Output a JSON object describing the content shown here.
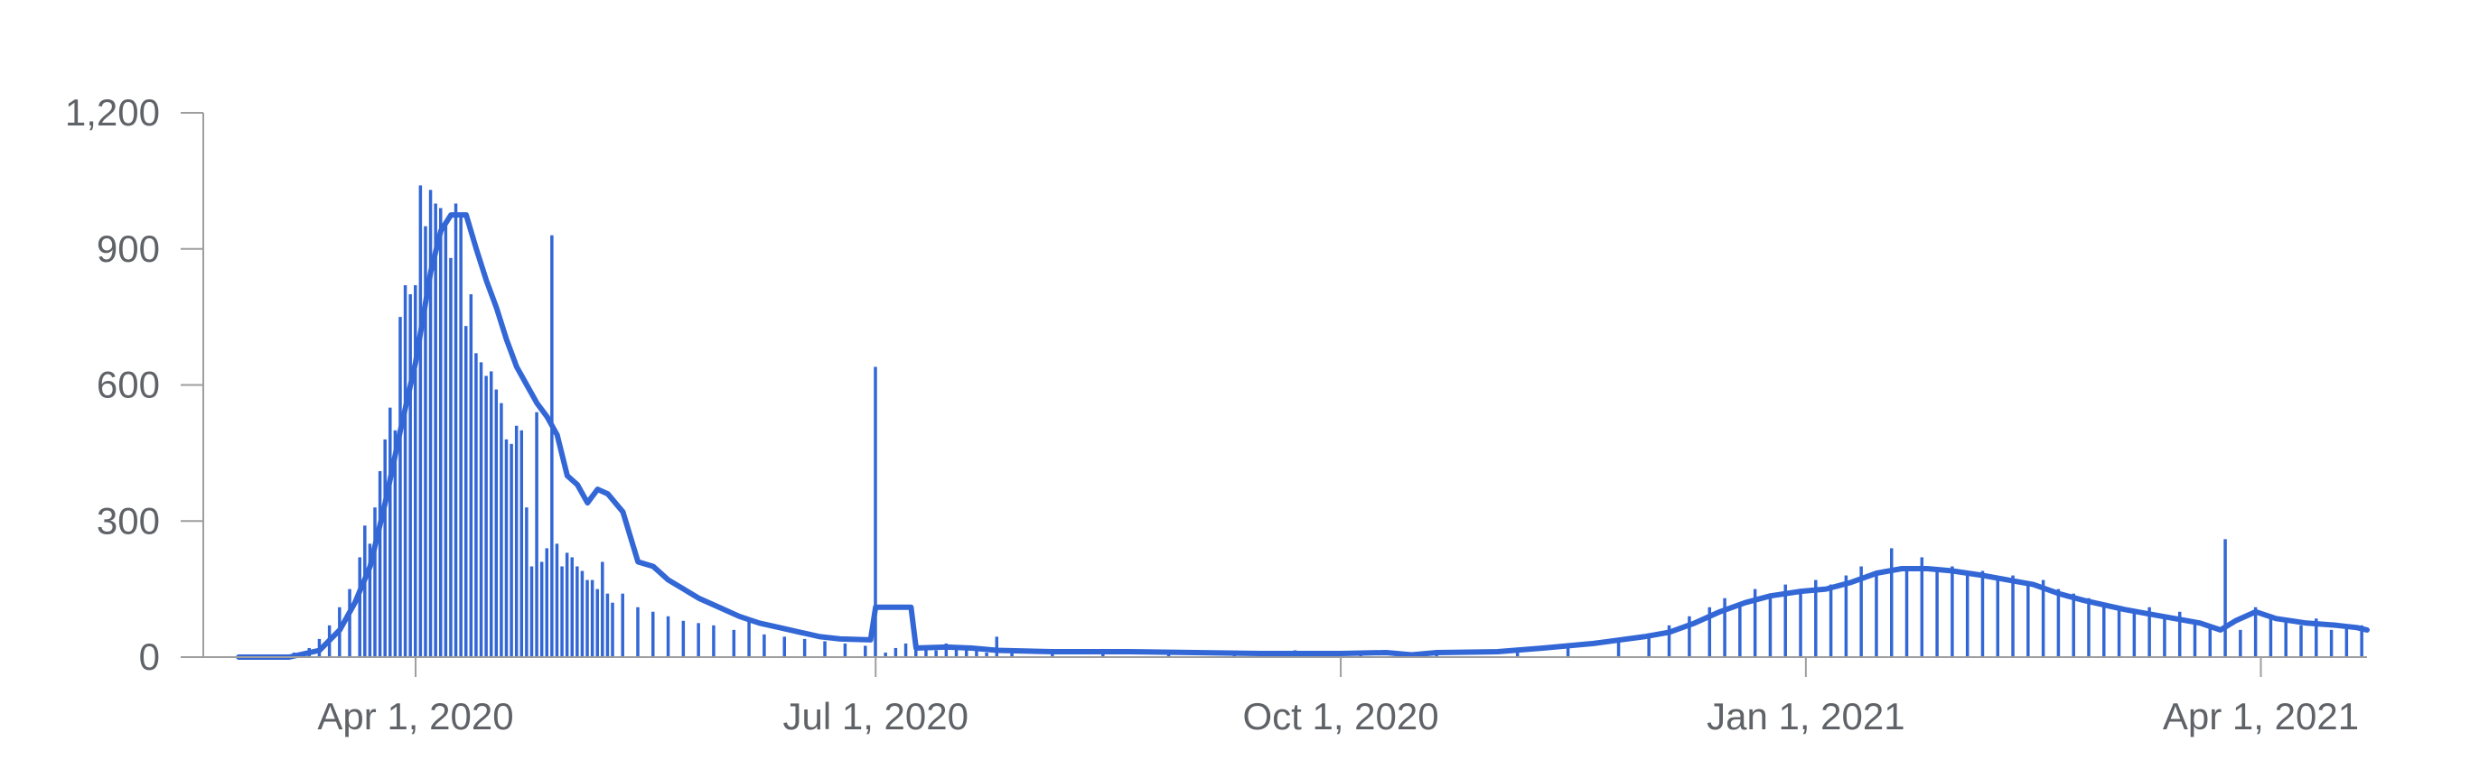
{
  "chart_data": {
    "type": "bar",
    "title": "",
    "xlabel": "",
    "ylabel": "",
    "ylim": [
      0,
      1200
    ],
    "yticks": [
      0,
      300,
      600,
      900,
      1200
    ],
    "ytick_labels": [
      "0",
      "300",
      "600",
      "900",
      "1,200"
    ],
    "xticks": [
      {
        "date": "2020-04-01",
        "label": "Apr 1, 2020"
      },
      {
        "date": "2020-07-01",
        "label": "Jul 1, 2020"
      },
      {
        "date": "2020-10-01",
        "label": "Oct 1, 2020"
      },
      {
        "date": "2021-01-01",
        "label": "Jan 1, 2021"
      },
      {
        "date": "2021-04-01",
        "label": "Apr 1, 2021"
      }
    ],
    "x_range": [
      "2020-02-19",
      "2021-04-22"
    ],
    "grid": false,
    "legend": "none",
    "colors": {
      "bars": "#3367d6",
      "line": "#3367d6",
      "axis": "#9e9e9e",
      "text": "#5f6368"
    },
    "series": [
      {
        "type": "bar",
        "points": [
          [
            "2020-02-26",
            0
          ],
          [
            "2020-03-05",
            3
          ],
          [
            "2020-03-08",
            10
          ],
          [
            "2020-03-11",
            20
          ],
          [
            "2020-03-13",
            40
          ],
          [
            "2020-03-15",
            70
          ],
          [
            "2020-03-17",
            110
          ],
          [
            "2020-03-19",
            150
          ],
          [
            "2020-03-21",
            220
          ],
          [
            "2020-03-22",
            290
          ],
          [
            "2020-03-23",
            250
          ],
          [
            "2020-03-24",
            330
          ],
          [
            "2020-03-25",
            410
          ],
          [
            "2020-03-26",
            480
          ],
          [
            "2020-03-27",
            550
          ],
          [
            "2020-03-28",
            500
          ],
          [
            "2020-03-29",
            750
          ],
          [
            "2020-03-30",
            820
          ],
          [
            "2020-03-31",
            800
          ],
          [
            "2020-04-01",
            820
          ],
          [
            "2020-04-02",
            1040
          ],
          [
            "2020-04-03",
            950
          ],
          [
            "2020-04-04",
            1030
          ],
          [
            "2020-04-05",
            1000
          ],
          [
            "2020-04-06",
            990
          ],
          [
            "2020-04-07",
            960
          ],
          [
            "2020-04-08",
            880
          ],
          [
            "2020-04-09",
            1000
          ],
          [
            "2020-04-10",
            980
          ],
          [
            "2020-04-11",
            730
          ],
          [
            "2020-04-12",
            800
          ],
          [
            "2020-04-13",
            670
          ],
          [
            "2020-04-14",
            650
          ],
          [
            "2020-04-15",
            620
          ],
          [
            "2020-04-16",
            630
          ],
          [
            "2020-04-17",
            590
          ],
          [
            "2020-04-18",
            560
          ],
          [
            "2020-04-19",
            480
          ],
          [
            "2020-04-20",
            470
          ],
          [
            "2020-04-21",
            510
          ],
          [
            "2020-04-22",
            500
          ],
          [
            "2020-04-23",
            330
          ],
          [
            "2020-04-24",
            200
          ],
          [
            "2020-04-25",
            540
          ],
          [
            "2020-04-26",
            210
          ],
          [
            "2020-04-27",
            240
          ],
          [
            "2020-04-28",
            930
          ],
          [
            "2020-04-29",
            250
          ],
          [
            "2020-04-30",
            200
          ],
          [
            "2020-05-01",
            230
          ],
          [
            "2020-05-02",
            220
          ],
          [
            "2020-05-03",
            200
          ],
          [
            "2020-05-04",
            190
          ],
          [
            "2020-05-05",
            170
          ],
          [
            "2020-05-06",
            170
          ],
          [
            "2020-05-07",
            150
          ],
          [
            "2020-05-08",
            210
          ],
          [
            "2020-05-09",
            140
          ],
          [
            "2020-05-10",
            120
          ],
          [
            "2020-05-12",
            140
          ],
          [
            "2020-05-15",
            110
          ],
          [
            "2020-05-18",
            100
          ],
          [
            "2020-05-21",
            90
          ],
          [
            "2020-05-24",
            80
          ],
          [
            "2020-05-27",
            75
          ],
          [
            "2020-05-30",
            70
          ],
          [
            "2020-06-03",
            60
          ],
          [
            "2020-06-06",
            80
          ],
          [
            "2020-06-09",
            50
          ],
          [
            "2020-06-13",
            45
          ],
          [
            "2020-06-17",
            40
          ],
          [
            "2020-06-21",
            35
          ],
          [
            "2020-06-25",
            30
          ],
          [
            "2020-06-29",
            25
          ],
          [
            "2020-07-01",
            640
          ],
          [
            "2020-07-03",
            10
          ],
          [
            "2020-07-05",
            20
          ],
          [
            "2020-07-07",
            30
          ],
          [
            "2020-07-09",
            20
          ],
          [
            "2020-07-11",
            25
          ],
          [
            "2020-07-13",
            15
          ],
          [
            "2020-07-15",
            30
          ],
          [
            "2020-07-17",
            20
          ],
          [
            "2020-07-19",
            15
          ],
          [
            "2020-07-21",
            20
          ],
          [
            "2020-07-23",
            10
          ],
          [
            "2020-07-25",
            45
          ],
          [
            "2020-07-28",
            10
          ],
          [
            "2020-08-05",
            10
          ],
          [
            "2020-08-15",
            8
          ],
          [
            "2020-08-28",
            15
          ],
          [
            "2020-09-10",
            6
          ],
          [
            "2020-09-22",
            15
          ],
          [
            "2020-10-05",
            8
          ],
          [
            "2020-10-20",
            10
          ],
          [
            "2020-11-05",
            20
          ],
          [
            "2020-11-15",
            25
          ],
          [
            "2020-11-25",
            40
          ],
          [
            "2020-12-01",
            50
          ],
          [
            "2020-12-05",
            70
          ],
          [
            "2020-12-09",
            90
          ],
          [
            "2020-12-13",
            110
          ],
          [
            "2020-12-16",
            130
          ],
          [
            "2020-12-19",
            120
          ],
          [
            "2020-12-22",
            150
          ],
          [
            "2020-12-25",
            140
          ],
          [
            "2020-12-28",
            160
          ],
          [
            "2020-12-31",
            140
          ],
          [
            "2021-01-03",
            170
          ],
          [
            "2021-01-06",
            160
          ],
          [
            "2021-01-09",
            180
          ],
          [
            "2021-01-12",
            200
          ],
          [
            "2021-01-15",
            190
          ],
          [
            "2021-01-18",
            240
          ],
          [
            "2021-01-21",
            200
          ],
          [
            "2021-01-24",
            220
          ],
          [
            "2021-01-27",
            190
          ],
          [
            "2021-01-30",
            200
          ],
          [
            "2021-02-02",
            180
          ],
          [
            "2021-02-05",
            190
          ],
          [
            "2021-02-08",
            170
          ],
          [
            "2021-02-11",
            180
          ],
          [
            "2021-02-14",
            160
          ],
          [
            "2021-02-17",
            170
          ],
          [
            "2021-02-20",
            150
          ],
          [
            "2021-02-23",
            140
          ],
          [
            "2021-02-26",
            130
          ],
          [
            "2021-03-01",
            120
          ],
          [
            "2021-03-04",
            110
          ],
          [
            "2021-03-07",
            100
          ],
          [
            "2021-03-10",
            110
          ],
          [
            "2021-03-13",
            90
          ],
          [
            "2021-03-16",
            100
          ],
          [
            "2021-03-19",
            80
          ],
          [
            "2021-03-22",
            70
          ],
          [
            "2021-03-25",
            260
          ],
          [
            "2021-03-28",
            60
          ],
          [
            "2021-03-31",
            110
          ],
          [
            "2021-04-03",
            90
          ],
          [
            "2021-04-06",
            80
          ],
          [
            "2021-04-09",
            70
          ],
          [
            "2021-04-12",
            85
          ],
          [
            "2021-04-15",
            60
          ],
          [
            "2021-04-18",
            70
          ],
          [
            "2021-04-21",
            70
          ]
        ]
      },
      {
        "type": "line",
        "points": [
          [
            "2020-02-26",
            0
          ],
          [
            "2020-03-07",
            0
          ],
          [
            "2020-03-09",
            5
          ],
          [
            "2020-03-13",
            15
          ],
          [
            "2020-03-17",
            60
          ],
          [
            "2020-03-20",
            120
          ],
          [
            "2020-03-23",
            200
          ],
          [
            "2020-03-26",
            340
          ],
          [
            "2020-03-29",
            500
          ],
          [
            "2020-04-01",
            650
          ],
          [
            "2020-04-04",
            850
          ],
          [
            "2020-04-06",
            940
          ],
          [
            "2020-04-08",
            975
          ],
          [
            "2020-04-11",
            975
          ],
          [
            "2020-04-13",
            900
          ],
          [
            "2020-04-15",
            830
          ],
          [
            "2020-04-17",
            770
          ],
          [
            "2020-04-19",
            700
          ],
          [
            "2020-04-21",
            640
          ],
          [
            "2020-04-23",
            600
          ],
          [
            "2020-04-25",
            560
          ],
          [
            "2020-04-27",
            530
          ],
          [
            "2020-04-29",
            490
          ],
          [
            "2020-05-01",
            400
          ],
          [
            "2020-05-03",
            380
          ],
          [
            "2020-05-05",
            340
          ],
          [
            "2020-05-07",
            370
          ],
          [
            "2020-05-09",
            360
          ],
          [
            "2020-05-12",
            320
          ],
          [
            "2020-05-15",
            210
          ],
          [
            "2020-05-18",
            200
          ],
          [
            "2020-05-21",
            170
          ],
          [
            "2020-05-24",
            150
          ],
          [
            "2020-05-27",
            130
          ],
          [
            "2020-05-31",
            110
          ],
          [
            "2020-06-04",
            90
          ],
          [
            "2020-06-08",
            75
          ],
          [
            "2020-06-12",
            65
          ],
          [
            "2020-06-16",
            55
          ],
          [
            "2020-06-20",
            45
          ],
          [
            "2020-06-24",
            40
          ],
          [
            "2020-06-30",
            38
          ],
          [
            "2020-07-01",
            110
          ],
          [
            "2020-07-08",
            110
          ],
          [
            "2020-07-09",
            20
          ],
          [
            "2020-07-15",
            22
          ],
          [
            "2020-07-20",
            20
          ],
          [
            "2020-07-25",
            15
          ],
          [
            "2020-08-05",
            12
          ],
          [
            "2020-08-20",
            12
          ],
          [
            "2020-09-15",
            8
          ],
          [
            "2020-10-01",
            8
          ],
          [
            "2020-10-10",
            10
          ],
          [
            "2020-10-15",
            5
          ],
          [
            "2020-10-20",
            10
          ],
          [
            "2020-11-01",
            12
          ],
          [
            "2020-11-10",
            20
          ],
          [
            "2020-11-20",
            30
          ],
          [
            "2020-11-30",
            45
          ],
          [
            "2020-12-05",
            55
          ],
          [
            "2020-12-10",
            75
          ],
          [
            "2020-12-15",
            100
          ],
          [
            "2020-12-20",
            120
          ],
          [
            "2020-12-25",
            135
          ],
          [
            "2020-12-31",
            145
          ],
          [
            "2021-01-05",
            150
          ],
          [
            "2021-01-10",
            165
          ],
          [
            "2021-01-15",
            185
          ],
          [
            "2021-01-20",
            195
          ],
          [
            "2021-01-25",
            195
          ],
          [
            "2021-01-30",
            190
          ],
          [
            "2021-02-05",
            180
          ],
          [
            "2021-02-10",
            170
          ],
          [
            "2021-02-15",
            160
          ],
          [
            "2021-02-20",
            140
          ],
          [
            "2021-02-25",
            125
          ],
          [
            "2021-03-01",
            115
          ],
          [
            "2021-03-05",
            105
          ],
          [
            "2021-03-10",
            95
          ],
          [
            "2021-03-15",
            85
          ],
          [
            "2021-03-20",
            75
          ],
          [
            "2021-03-24",
            60
          ],
          [
            "2021-03-27",
            80
          ],
          [
            "2021-03-31",
            100
          ],
          [
            "2021-04-04",
            85
          ],
          [
            "2021-04-10",
            75
          ],
          [
            "2021-04-16",
            70
          ],
          [
            "2021-04-20",
            65
          ],
          [
            "2021-04-22",
            60
          ]
        ]
      }
    ]
  }
}
